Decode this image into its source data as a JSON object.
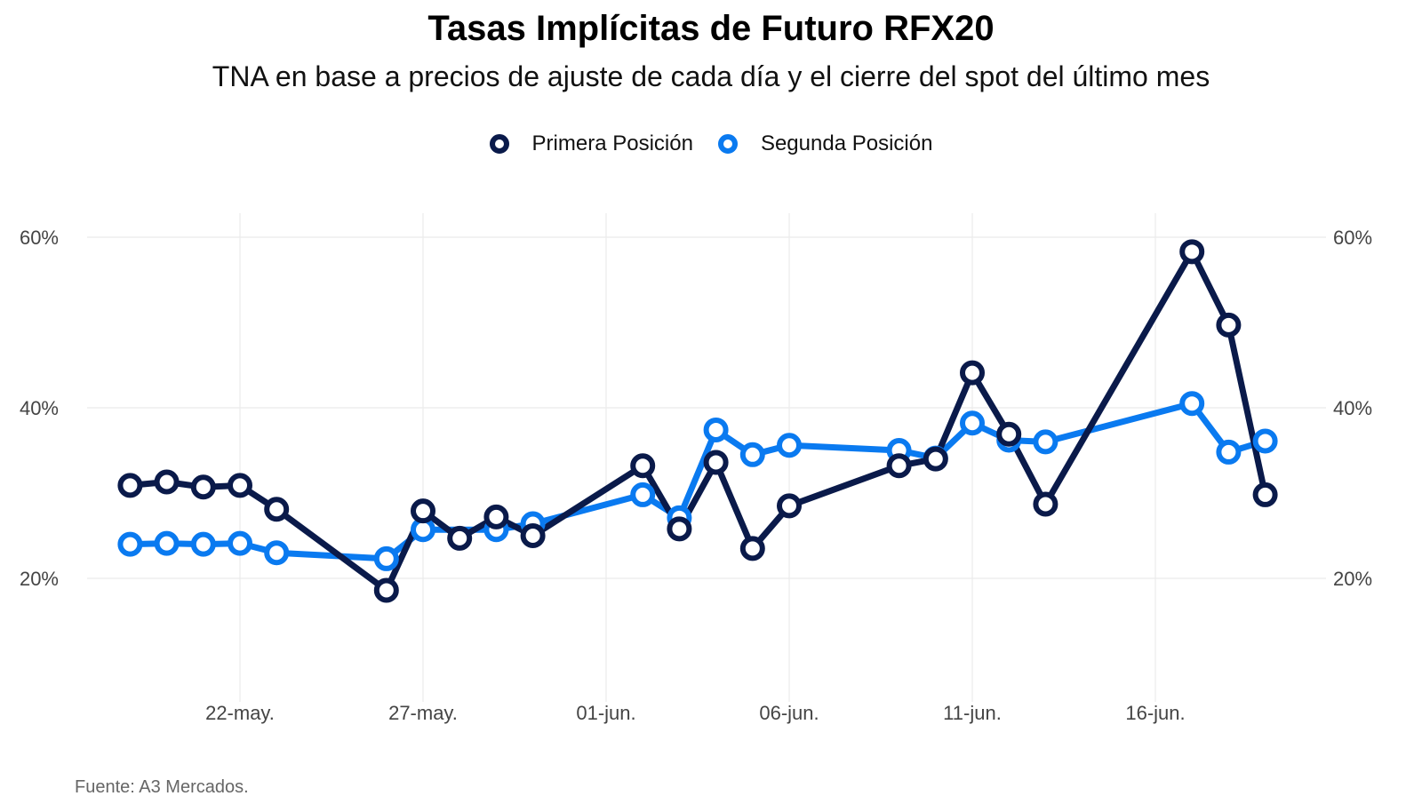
{
  "chart_data": {
    "type": "line",
    "title": "Tasas Implícitas de Futuro RFX20",
    "subtitle": "TNA en base a precios de ajuste de cada día y el cierre del spot del último mes",
    "source": "Fuente: A3 Mercados.",
    "xlabel": "",
    "ylabel": "",
    "y_ticks": [
      "20%",
      "40%",
      "60%"
    ],
    "y_tick_values": [
      20,
      40,
      60
    ],
    "ylim": [
      8.5,
      62.5
    ],
    "x_ticks": [
      "22-may.",
      "27-may.",
      "01-jun.",
      "06-jun.",
      "11-jun.",
      "16-jun."
    ],
    "x_tick_dates": [
      "2023-05-22",
      "2023-05-27",
      "2023-06-01",
      "2023-06-06",
      "2023-06-11",
      "2023-06-16"
    ],
    "grid": true,
    "legend_position": "top",
    "series": [
      {
        "name": "Primera Posición",
        "color": "#0a1a4a",
        "points": [
          {
            "x": "2023-05-19",
            "y": 30.9
          },
          {
            "x": "2023-05-20",
            "y": 31.3
          },
          {
            "x": "2023-05-21",
            "y": 30.7
          },
          {
            "x": "2023-05-22",
            "y": 30.9
          },
          {
            "x": "2023-05-23",
            "y": 28.1
          },
          {
            "x": "2023-05-26",
            "y": 18.6
          },
          {
            "x": "2023-05-27",
            "y": 27.9
          },
          {
            "x": "2023-05-28",
            "y": 24.7
          },
          {
            "x": "2023-05-29",
            "y": 27.2
          },
          {
            "x": "2023-05-30",
            "y": 25.0
          },
          {
            "x": "2023-06-02",
            "y": 33.2
          },
          {
            "x": "2023-06-03",
            "y": 25.8
          },
          {
            "x": "2023-06-04",
            "y": 33.6
          },
          {
            "x": "2023-06-05",
            "y": 23.5
          },
          {
            "x": "2023-06-06",
            "y": 28.5
          },
          {
            "x": "2023-06-09",
            "y": 33.2
          },
          {
            "x": "2023-06-10",
            "y": 34.0
          },
          {
            "x": "2023-06-11",
            "y": 44.1
          },
          {
            "x": "2023-06-12",
            "y": 36.9
          },
          {
            "x": "2023-06-13",
            "y": 28.7
          },
          {
            "x": "2023-06-17",
            "y": 58.3
          },
          {
            "x": "2023-06-18",
            "y": 49.7
          },
          {
            "x": "2023-06-19",
            "y": 29.8
          }
        ]
      },
      {
        "name": "Segunda Posición",
        "color": "#0a7af0",
        "points": [
          {
            "x": "2023-05-19",
            "y": 24.0
          },
          {
            "x": "2023-05-20",
            "y": 24.1
          },
          {
            "x": "2023-05-21",
            "y": 24.0
          },
          {
            "x": "2023-05-22",
            "y": 24.1
          },
          {
            "x": "2023-05-23",
            "y": 23.0
          },
          {
            "x": "2023-05-26",
            "y": 22.3
          },
          {
            "x": "2023-05-27",
            "y": 25.7
          },
          {
            "x": "2023-05-29",
            "y": 25.7
          },
          {
            "x": "2023-05-30",
            "y": 26.4
          },
          {
            "x": "2023-06-02",
            "y": 29.8
          },
          {
            "x": "2023-06-03",
            "y": 27.1
          },
          {
            "x": "2023-06-04",
            "y": 37.4
          },
          {
            "x": "2023-06-05",
            "y": 34.5
          },
          {
            "x": "2023-06-06",
            "y": 35.6
          },
          {
            "x": "2023-06-09",
            "y": 35.0
          },
          {
            "x": "2023-06-10",
            "y": 34.1
          },
          {
            "x": "2023-06-11",
            "y": 38.2
          },
          {
            "x": "2023-06-12",
            "y": 36.2
          },
          {
            "x": "2023-06-13",
            "y": 36.0
          },
          {
            "x": "2023-06-17",
            "y": 40.5
          },
          {
            "x": "2023-06-18",
            "y": 34.8
          },
          {
            "x": "2023-06-19",
            "y": 36.1
          }
        ]
      }
    ]
  }
}
